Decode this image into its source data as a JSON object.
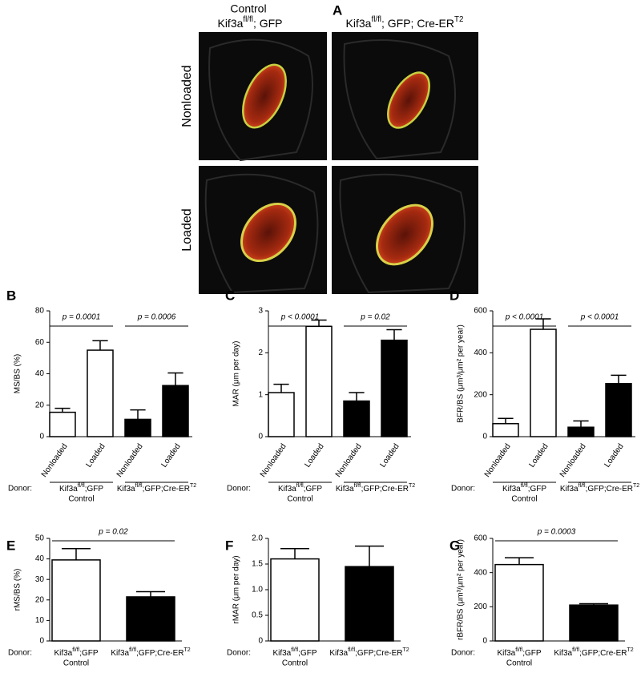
{
  "panel_a": {
    "letter": "A",
    "col_title": "Control",
    "col_labels": [
      [
        "Kif3a",
        {
          "sup": "fl/fl"
        },
        "; GFP"
      ],
      [
        "Kif3a",
        {
          "sup": "fl/fl"
        },
        "; GFP; Cre-ER",
        {
          "sup": "T2"
        }
      ]
    ],
    "row_labels": [
      "Nonloaded",
      "Loaded"
    ]
  },
  "chart_data": [
    {
      "type": "bar",
      "letter": "B",
      "ylabel": "MS/BS (%)",
      "categories": [
        "Nonloaded",
        "Loaded",
        "Nonloaded",
        "Loaded"
      ],
      "values": [
        15.5,
        55,
        11,
        32.5
      ],
      "errors": [
        2.5,
        6,
        6,
        8
      ],
      "colors": [
        "#ffffff",
        "#ffffff",
        "#000000",
        "#000000"
      ],
      "ylim": [
        0,
        80
      ],
      "yticks": [
        0,
        20,
        40,
        60,
        80
      ],
      "annotations": [
        {
          "text": "p = 0.0001",
          "from": 0,
          "to": 1
        },
        {
          "text": "p = 0.0006",
          "from": 2,
          "to": 3
        }
      ],
      "donor_label": "Donor:",
      "groups": [
        {
          "label": [
            "Kif3a",
            {
              "sup": "fl/fl"
            },
            ";GFP"
          ],
          "sublabel": "Control"
        },
        {
          "label": [
            "Kif3a",
            {
              "sup": "fl/fl"
            },
            ";GFP;Cre-ER",
            {
              "sup": "T2"
            }
          ]
        }
      ]
    },
    {
      "type": "bar",
      "letter": "C",
      "ylabel": "MAR (μm per day)",
      "categories": [
        "Nonloaded",
        "Loaded",
        "Nonloaded",
        "Loaded"
      ],
      "values": [
        1.05,
        2.63,
        0.85,
        2.3
      ],
      "errors": [
        0.2,
        0.15,
        0.2,
        0.25
      ],
      "colors": [
        "#ffffff",
        "#ffffff",
        "#000000",
        "#000000"
      ],
      "ylim": [
        0,
        3
      ],
      "yticks": [
        0,
        1,
        2,
        3
      ],
      "annotations": [
        {
          "text": "p < 0.0001",
          "from": 0,
          "to": 1
        },
        {
          "text": "p = 0.02",
          "from": 2,
          "to": 3
        }
      ],
      "donor_label": "Donor:",
      "groups": [
        {
          "label": [
            "Kif3a",
            {
              "sup": "fl/fl"
            },
            ";GFP"
          ],
          "sublabel": "Control"
        },
        {
          "label": [
            "Kif3a",
            {
              "sup": "fl/fl"
            },
            ";GFP;Cre-ER",
            {
              "sup": "T2"
            }
          ]
        }
      ]
    },
    {
      "type": "bar",
      "letter": "D",
      "ylabel": "BFR/BS (μm³/μm² per year)",
      "categories": [
        "Nonloaded",
        "Loaded",
        "Nonloaded",
        "Loaded"
      ],
      "values": [
        62,
        512,
        45,
        253
      ],
      "errors": [
        25,
        50,
        30,
        40
      ],
      "colors": [
        "#ffffff",
        "#ffffff",
        "#000000",
        "#000000"
      ],
      "ylim": [
        0,
        600
      ],
      "yticks": [
        0,
        200,
        400,
        600
      ],
      "annotations": [
        {
          "text": "p < 0.0001",
          "from": 0,
          "to": 1
        },
        {
          "text": "p < 0.0001",
          "from": 2,
          "to": 3
        }
      ],
      "donor_label": "Donor:",
      "groups": [
        {
          "label": [
            "Kif3a",
            {
              "sup": "fl/fl"
            },
            ";GFP"
          ],
          "sublabel": "Control"
        },
        {
          "label": [
            "Kif3a",
            {
              "sup": "fl/fl"
            },
            ";GFP;Cre-ER",
            {
              "sup": "T2"
            }
          ]
        }
      ]
    },
    {
      "type": "bar",
      "letter": "E",
      "ylabel": "rMS/BS (%)",
      "values": [
        39.5,
        21.5
      ],
      "errors": [
        5.5,
        2.5
      ],
      "colors": [
        "#ffffff",
        "#000000"
      ],
      "ylim": [
        0,
        50
      ],
      "yticks": [
        0,
        10,
        20,
        30,
        40,
        50
      ],
      "annotations": [
        {
          "text": "p = 0.02",
          "from": 0,
          "to": 1
        }
      ],
      "donor_label": "Donor:",
      "groups": [
        {
          "label": [
            "Kif3a",
            {
              "sup": "fl/fl"
            },
            ";GFP"
          ],
          "sublabel": "Control"
        },
        {
          "label": [
            "Kif3a",
            {
              "sup": "fl/fl"
            },
            ";GFP;Cre-ER",
            {
              "sup": "T2"
            }
          ]
        }
      ]
    },
    {
      "type": "bar",
      "letter": "F",
      "ylabel": "rMAR (μm per day)",
      "values": [
        1.6,
        1.45
      ],
      "errors": [
        0.2,
        0.4
      ],
      "colors": [
        "#ffffff",
        "#000000"
      ],
      "ylim": [
        0,
        2
      ],
      "yticks": [
        0,
        0.5,
        {
          "value": 1,
          "label": "1.0"
        },
        1.5,
        {
          "value": 2,
          "label": "2.0"
        }
      ],
      "donor_label": "Donor:",
      "groups": [
        {
          "label": [
            "Kif3a",
            {
              "sup": "fl/fl"
            },
            ";GFP"
          ],
          "sublabel": "Control"
        },
        {
          "label": [
            "Kif3a",
            {
              "sup": "fl/fl"
            },
            ";GFP;Cre-ER",
            {
              "sup": "T2"
            }
          ]
        }
      ]
    },
    {
      "type": "bar",
      "letter": "G",
      "ylabel": "rBFR/BS (μm³/μm² per year)",
      "values": [
        447,
        210
      ],
      "errors": [
        40,
        8
      ],
      "colors": [
        "#ffffff",
        "#000000"
      ],
      "ylim": [
        0,
        600
      ],
      "yticks": [
        0,
        200,
        400,
        600
      ],
      "annotations": [
        {
          "text": "p = 0.0003",
          "from": 0,
          "to": 1
        }
      ],
      "donor_label": "Donor:",
      "groups": [
        {
          "label": [
            "Kif3a",
            {
              "sup": "fl/fl"
            },
            ";GFP"
          ],
          "sublabel": "Control"
        },
        {
          "label": [
            "Kif3a",
            {
              "sup": "fl/fl"
            },
            ";GFP;Cre-ER",
            {
              "sup": "T2"
            }
          ]
        }
      ]
    }
  ]
}
